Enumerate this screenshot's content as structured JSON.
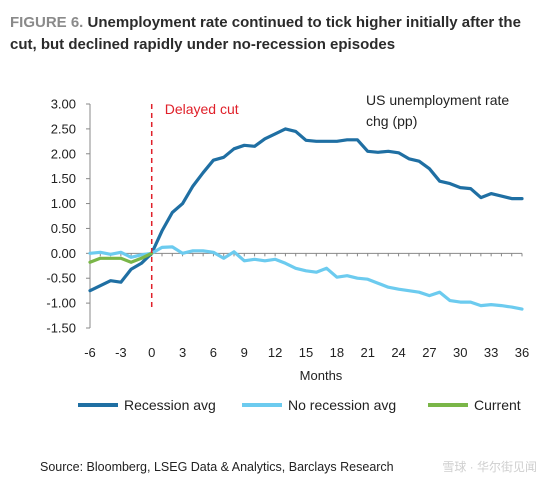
{
  "header": {
    "figure_label": "FIGURE 6.",
    "title": "Unemployment rate continued to tick higher initially after the cut, but declined rapidly under no-recession episodes"
  },
  "footer": {
    "source": "Source: Bloomberg, LSEG Data & Analytics, Barclays Research",
    "watermark": "雪球 · 华尔街见闻"
  },
  "chart_data": {
    "type": "line",
    "title": "",
    "xlabel": "Months",
    "ylabel": "",
    "xlim": [
      -6,
      36
    ],
    "ylim": [
      -1.5,
      3.0
    ],
    "x_ticks": [
      -6,
      -3,
      0,
      3,
      6,
      9,
      12,
      15,
      18,
      21,
      24,
      27,
      30,
      33,
      36
    ],
    "y_ticks": [
      "3.00",
      "2.50",
      "2.00",
      "1.50",
      "1.00",
      "0.50",
      "0.00",
      "-0.50",
      "-1.00",
      "-1.50"
    ],
    "y_tick_values": [
      3.0,
      2.5,
      2.0,
      1.5,
      1.0,
      0.5,
      0.0,
      -0.5,
      -1.0,
      -1.5
    ],
    "grid": false,
    "legend_position": "bottom",
    "annotations": {
      "vline_label": "Delayed cut",
      "vline_x": 0,
      "top_right_line1": "US unemployment rate",
      "top_right_line2": "chg (pp)"
    },
    "series": [
      {
        "name": "Recession avg",
        "color": "#1f6fa3",
        "x": [
          -6,
          -5,
          -4,
          -3,
          -2,
          -1,
          0,
          1,
          2,
          3,
          4,
          5,
          6,
          7,
          8,
          9,
          10,
          11,
          12,
          13,
          14,
          15,
          16,
          17,
          18,
          19,
          20,
          21,
          22,
          23,
          24,
          25,
          26,
          27,
          28,
          29,
          30,
          31,
          32,
          33,
          34,
          35,
          36
        ],
        "values": [
          -0.75,
          -0.65,
          -0.55,
          -0.58,
          -0.32,
          -0.2,
          0.0,
          0.45,
          0.82,
          1.0,
          1.35,
          1.62,
          1.87,
          1.93,
          2.1,
          2.17,
          2.15,
          2.3,
          2.4,
          2.5,
          2.45,
          2.27,
          2.25,
          2.25,
          2.25,
          2.28,
          2.28,
          2.05,
          2.03,
          2.05,
          2.02,
          1.9,
          1.85,
          1.7,
          1.45,
          1.4,
          1.32,
          1.3,
          1.12,
          1.2,
          1.15,
          1.1,
          1.1
        ]
      },
      {
        "name": "No recession avg",
        "color": "#6ccbef",
        "x": [
          -6,
          -5,
          -4,
          -3,
          -2,
          -1,
          0,
          1,
          2,
          3,
          4,
          5,
          6,
          7,
          8,
          9,
          10,
          11,
          12,
          13,
          14,
          15,
          16,
          17,
          18,
          19,
          20,
          21,
          22,
          23,
          24,
          25,
          26,
          27,
          28,
          29,
          30,
          31,
          32,
          33,
          34,
          35,
          36
        ],
        "values": [
          0.0,
          0.02,
          -0.02,
          0.02,
          -0.08,
          -0.03,
          0.0,
          0.12,
          0.13,
          0.0,
          0.05,
          0.05,
          0.02,
          -0.1,
          0.03,
          -0.15,
          -0.12,
          -0.15,
          -0.12,
          -0.2,
          -0.3,
          -0.35,
          -0.38,
          -0.3,
          -0.48,
          -0.45,
          -0.5,
          -0.52,
          -0.6,
          -0.68,
          -0.72,
          -0.75,
          -0.78,
          -0.85,
          -0.78,
          -0.95,
          -0.98,
          -0.98,
          -1.05,
          -1.03,
          -1.05,
          -1.08,
          -1.12
        ]
      },
      {
        "name": "Current",
        "color": "#7ab648",
        "x": [
          -6,
          -5,
          -4,
          -3,
          -2,
          -1,
          0
        ],
        "values": [
          -0.18,
          -0.1,
          -0.1,
          -0.1,
          -0.18,
          -0.1,
          0.0
        ]
      }
    ]
  }
}
